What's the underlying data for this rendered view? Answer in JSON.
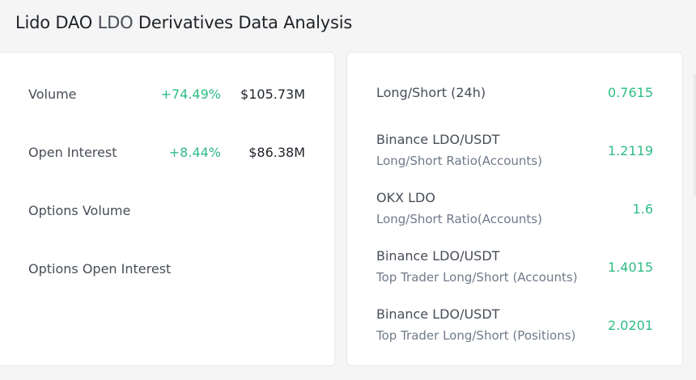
{
  "header": {
    "title_prefix": "Lido DAO ",
    "title_symbol": "LDO",
    "title_suffix": " Derivatives Data Analysis"
  },
  "left_panel": {
    "rows": [
      {
        "label": "Volume",
        "change": "+74.49%",
        "value": "$105.73M"
      },
      {
        "label": "Open Interest",
        "change": "+8.44%",
        "value": "$86.38M"
      },
      {
        "label": "Options Volume",
        "change": "",
        "value": ""
      },
      {
        "label": "Options Open Interest",
        "change": "",
        "value": ""
      }
    ]
  },
  "right_panel": {
    "items": [
      {
        "title": "Long/Short (24h)",
        "subtitle": "",
        "value": "0.7615"
      },
      {
        "title": "Binance LDO/USDT",
        "subtitle": "Long/Short Ratio(Accounts)",
        "value": "1.2119"
      },
      {
        "title": "OKX LDO",
        "subtitle": "Long/Short Ratio(Accounts)",
        "value": "1.6"
      },
      {
        "title": "Binance LDO/USDT",
        "subtitle": "Top Trader Long/Short (Accounts)",
        "value": "1.4015"
      },
      {
        "title": "Binance LDO/USDT",
        "subtitle": "Top Trader Long/Short (Positions)",
        "value": "2.0201"
      }
    ]
  },
  "colors": {
    "positive": "#2ebd85",
    "text_primary": "#1e2329",
    "text_secondary": "#707a8a",
    "background": "#f5f5f5"
  }
}
